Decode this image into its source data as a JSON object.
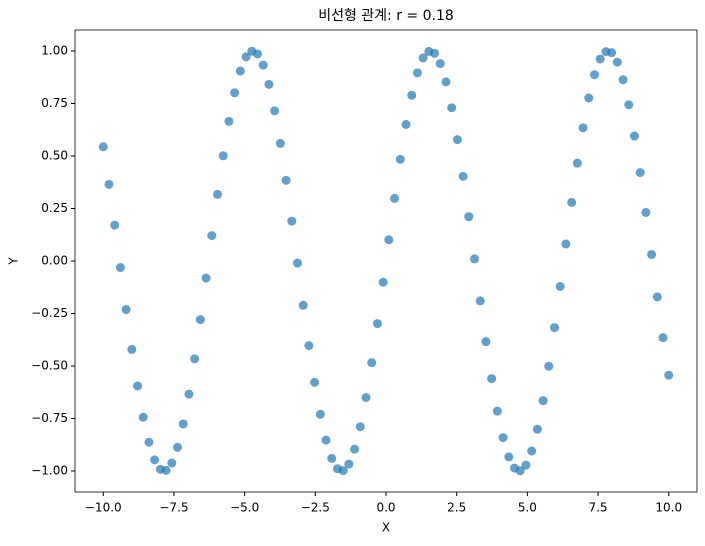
{
  "chart_data": {
    "type": "scatter",
    "title": "비선형 관계: r = 0.18",
    "x_label": "X",
    "y_label": "Y",
    "series": [
      {
        "color": "#1f77b4",
        "x": [
          -10.0,
          -9.798,
          -9.596,
          -9.394,
          -9.192,
          -8.99,
          -8.788,
          -8.586,
          -8.384,
          -8.182,
          -7.98,
          -7.778,
          -7.576,
          -7.374,
          -7.172,
          -6.97,
          -6.768,
          -6.566,
          -6.364,
          -6.162,
          -5.96,
          -5.758,
          -5.556,
          -5.354,
          -5.152,
          -4.95,
          -4.747,
          -4.545,
          -4.343,
          -4.141,
          -3.939,
          -3.737,
          -3.535,
          -3.333,
          -3.131,
          -2.929,
          -2.727,
          -2.525,
          -2.323,
          -2.121,
          -1.919,
          -1.717,
          -1.515,
          -1.313,
          -1.111,
          -0.909,
          -0.707,
          -0.505,
          -0.303,
          -0.101,
          0.101,
          0.303,
          0.505,
          0.707,
          0.909,
          1.111,
          1.313,
          1.515,
          1.717,
          1.919,
          2.121,
          2.323,
          2.525,
          2.727,
          2.929,
          3.131,
          3.333,
          3.535,
          3.737,
          3.939,
          4.141,
          4.343,
          4.545,
          4.747,
          4.95,
          5.152,
          5.354,
          5.556,
          5.758,
          5.96,
          6.162,
          6.364,
          6.566,
          6.768,
          6.97,
          7.172,
          7.374,
          7.576,
          7.778,
          7.98,
          8.182,
          8.384,
          8.586,
          8.788,
          8.99,
          9.192,
          9.394,
          9.596,
          9.798,
          10.0
        ],
        "values": [
          0.544,
          0.365,
          0.171,
          -0.031,
          -0.231,
          -0.421,
          -0.595,
          -0.744,
          -0.863,
          -0.947,
          -0.992,
          -0.997,
          -0.962,
          -0.887,
          -0.776,
          -0.634,
          -0.466,
          -0.279,
          -0.081,
          0.121,
          0.317,
          0.501,
          0.665,
          0.801,
          0.905,
          0.972,
          0.999,
          0.986,
          0.933,
          0.841,
          0.715,
          0.56,
          0.384,
          0.19,
          -0.01,
          -0.211,
          -0.403,
          -0.578,
          -0.73,
          -0.853,
          -0.94,
          -0.989,
          -0.998,
          -0.967,
          -0.896,
          -0.789,
          -0.65,
          -0.484,
          -0.298,
          -0.101,
          0.101,
          0.298,
          0.484,
          0.65,
          0.789,
          0.896,
          0.967,
          0.998,
          0.989,
          0.94,
          0.853,
          0.73,
          0.578,
          0.403,
          0.211,
          0.01,
          -0.19,
          -0.384,
          -0.56,
          -0.715,
          -0.841,
          -0.933,
          -0.986,
          -0.999,
          -0.972,
          -0.905,
          -0.801,
          -0.665,
          -0.501,
          -0.317,
          -0.121,
          0.081,
          0.279,
          0.466,
          0.634,
          0.776,
          0.887,
          0.962,
          0.997,
          0.992,
          0.947,
          0.863,
          0.744,
          0.595,
          0.421,
          0.231,
          0.031,
          -0.171,
          -0.365,
          -0.544
        ]
      }
    ],
    "xlim": [
      -11,
      11
    ],
    "ylim": [
      -1.1,
      1.1
    ],
    "xticks": [
      {
        "value": -10,
        "label": "−10.0"
      },
      {
        "value": -7.5,
        "label": "−7.5"
      },
      {
        "value": -5,
        "label": "−5.0"
      },
      {
        "value": -2.5,
        "label": "−2.5"
      },
      {
        "value": 0,
        "label": "0.0"
      },
      {
        "value": 2.5,
        "label": "2.5"
      },
      {
        "value": 5,
        "label": "5.0"
      },
      {
        "value": 7.5,
        "label": "7.5"
      },
      {
        "value": 10,
        "label": "10.0"
      }
    ],
    "yticks": [
      {
        "value": -1,
        "label": "−1.00"
      },
      {
        "value": -0.75,
        "label": "−0.75"
      },
      {
        "value": -0.5,
        "label": "−0.50"
      },
      {
        "value": -0.25,
        "label": "−0.25"
      },
      {
        "value": 0,
        "label": "0.00"
      },
      {
        "value": 0.25,
        "label": "0.25"
      },
      {
        "value": 0.5,
        "label": "0.50"
      },
      {
        "value": 0.75,
        "label": "0.75"
      },
      {
        "value": 1,
        "label": "1.00"
      }
    ],
    "grid": false
  }
}
